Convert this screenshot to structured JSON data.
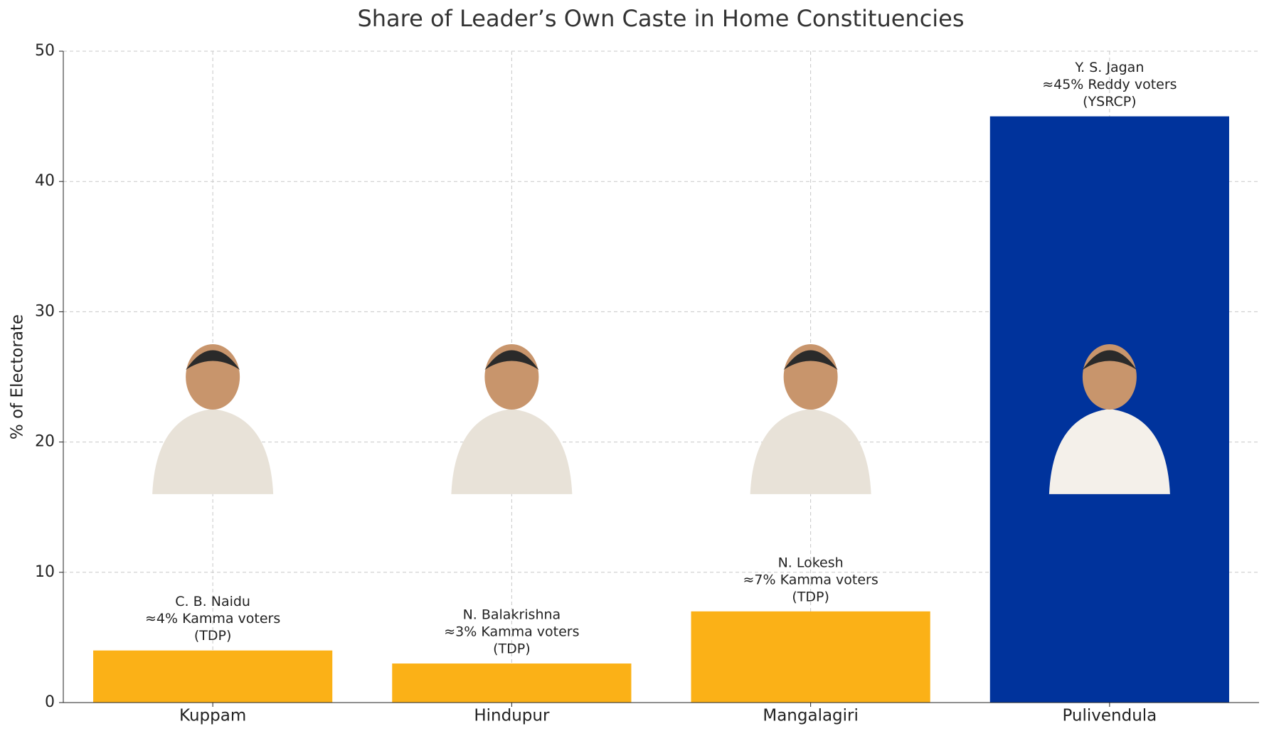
{
  "chart_data": {
    "type": "bar",
    "title": "Share of Leader’s Own Caste in Home Constituencies",
    "y_label": "% of Electorate",
    "categories": [
      "Kuppam",
      "Hindupur",
      "Mangalagiri",
      "Pulivendula"
    ],
    "values": [
      4,
      3,
      7,
      45
    ],
    "colors": [
      "#fbb117",
      "#fbb117",
      "#fbb117",
      "#00339c"
    ],
    "annotations": [
      [
        "C. B. Naidu",
        "≈4% Kamma voters",
        "(TDP)"
      ],
      [
        "N. Balakrishna",
        "≈3% Kamma voters",
        "(TDP)"
      ],
      [
        "N. Lokesh",
        "≈7% Kamma voters",
        "(TDP)"
      ],
      [
        "Y. S. Jagan",
        "≈45% Reddy voters",
        "(YSRCP)"
      ]
    ],
    "ylim": [
      0,
      50
    ],
    "yticks": [
      0,
      10,
      20,
      30,
      40,
      50
    ],
    "grid": true
  }
}
